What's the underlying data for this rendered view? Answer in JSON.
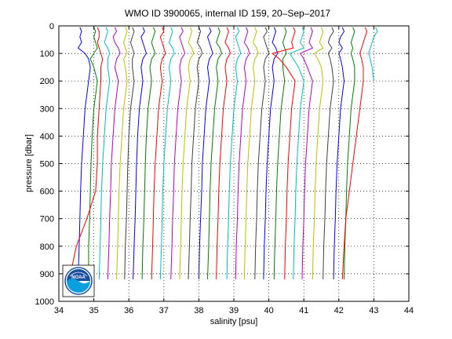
{
  "chart_data": {
    "type": "line",
    "title": "WMO ID 3900065, internal ID 159, 20–Sep–2017",
    "xlabel": "salinity [psu]",
    "ylabel": "pressure [dbar]",
    "xlim": [
      34,
      44
    ],
    "ylim": [
      0,
      1000
    ],
    "y_reversed": true,
    "grid": true,
    "xticks": [
      "34",
      "35",
      "36",
      "37",
      "38",
      "39",
      "40",
      "41",
      "42",
      "43",
      "44"
    ],
    "yticks": [
      "0",
      "100",
      "200",
      "300",
      "400",
      "500",
      "600",
      "700",
      "800",
      "900",
      "1000"
    ],
    "profile_pressures": [
      5,
      20,
      40,
      60,
      80,
      100,
      120,
      150,
      200,
      300,
      400,
      500,
      600,
      700,
      800,
      920
    ],
    "series": [
      {
        "color": "#0000ff",
        "values": [
          34.6,
          34.65,
          34.6,
          34.65,
          34.55,
          34.75,
          34.85,
          34.9,
          34.85,
          34.75,
          34.7,
          34.65,
          34.62,
          34.6,
          34.58,
          34.55
        ]
      },
      {
        "color": "#008000",
        "values": [
          35.0,
          35.05,
          35.0,
          35.05,
          35.1,
          35.0,
          34.9,
          35.0,
          35.1,
          35.0,
          34.95,
          34.92,
          34.9,
          34.88,
          34.85,
          34.85
        ]
      },
      {
        "color": "#ff0000",
        "values": [
          35.1,
          35.15,
          35.15,
          35.1,
          35.15,
          35.2,
          35.25,
          35.2,
          35.2,
          35.15,
          35.1,
          35.1,
          35.05,
          34.8,
          34.5,
          34.3
        ]
      },
      {
        "color": "#00bfbf",
        "values": [
          35.35,
          35.4,
          35.35,
          35.3,
          35.4,
          35.45,
          35.4,
          35.4,
          35.45,
          35.35,
          35.3,
          35.25,
          35.22,
          35.2,
          35.18,
          35.15
        ]
      },
      {
        "color": "#bf00bf",
        "values": [
          35.6,
          35.65,
          35.55,
          35.6,
          35.7,
          35.75,
          35.65,
          35.6,
          35.7,
          35.6,
          35.55,
          35.5,
          35.48,
          35.45,
          35.43,
          35.4
        ]
      },
      {
        "color": "#bfbf00",
        "values": [
          35.9,
          35.95,
          35.9,
          35.85,
          35.9,
          35.95,
          35.85,
          35.9,
          35.95,
          35.85,
          35.8,
          35.75,
          35.72,
          35.7,
          35.68,
          35.65
        ]
      },
      {
        "color": "#404040",
        "values": [
          36.1,
          36.15,
          36.1,
          36.05,
          36.1,
          36.15,
          36.1,
          36.1,
          36.15,
          36.05,
          36.0,
          35.97,
          35.95,
          35.93,
          35.9,
          35.88
        ]
      },
      {
        "color": "#0000ff",
        "values": [
          36.4,
          36.45,
          36.35,
          36.4,
          36.45,
          36.5,
          36.4,
          36.35,
          36.4,
          36.3,
          36.25,
          36.22,
          36.2,
          36.18,
          36.15,
          36.12
        ]
      },
      {
        "color": "#008000",
        "values": [
          36.7,
          36.75,
          36.7,
          36.65,
          36.7,
          36.75,
          36.65,
          36.6,
          36.65,
          36.55,
          36.5,
          36.47,
          36.45,
          36.43,
          36.4,
          36.38
        ]
      },
      {
        "color": "#ff0000",
        "values": [
          36.95,
          37.0,
          36.9,
          36.95,
          37.0,
          37.05,
          36.95,
          36.9,
          36.95,
          36.85,
          36.8,
          36.75,
          36.72,
          36.7,
          36.68,
          36.65
        ]
      },
      {
        "color": "#00bfbf",
        "values": [
          37.2,
          37.25,
          37.2,
          37.15,
          37.25,
          37.3,
          37.2,
          37.15,
          37.2,
          37.1,
          37.05,
          37.0,
          36.97,
          36.95,
          36.93,
          36.9
        ]
      },
      {
        "color": "#bf00bf",
        "values": [
          37.5,
          37.55,
          37.45,
          37.5,
          37.55,
          37.6,
          37.5,
          37.45,
          37.5,
          37.4,
          37.35,
          37.3,
          37.28,
          37.25,
          37.23,
          37.2
        ]
      },
      {
        "color": "#bfbf00",
        "values": [
          37.75,
          37.8,
          37.75,
          37.7,
          37.8,
          37.85,
          37.75,
          37.7,
          37.75,
          37.65,
          37.6,
          37.55,
          37.52,
          37.5,
          37.48,
          37.45
        ]
      },
      {
        "color": "#404040",
        "values": [
          38.0,
          38.05,
          38.0,
          37.95,
          38.05,
          38.1,
          38.0,
          37.95,
          38.0,
          37.9,
          37.85,
          37.8,
          37.78,
          37.75,
          37.73,
          37.7
        ]
      },
      {
        "color": "#0000ff",
        "values": [
          38.3,
          38.35,
          38.25,
          38.3,
          38.35,
          38.4,
          38.3,
          38.25,
          38.3,
          38.2,
          38.15,
          38.1,
          38.08,
          38.05,
          38.02,
          38.0
        ]
      },
      {
        "color": "#008000",
        "values": [
          38.55,
          38.6,
          38.55,
          38.5,
          38.6,
          38.65,
          38.55,
          38.5,
          38.55,
          38.45,
          38.4,
          38.35,
          38.32,
          38.3,
          38.28,
          38.25
        ]
      },
      {
        "color": "#ff0000",
        "values": [
          38.8,
          38.85,
          38.8,
          38.75,
          38.85,
          38.9,
          38.8,
          38.75,
          38.8,
          38.7,
          38.65,
          38.6,
          38.57,
          38.55,
          38.52,
          38.5
        ]
      },
      {
        "color": "#00bfbf",
        "values": [
          39.1,
          39.15,
          39.05,
          39.1,
          39.15,
          39.2,
          39.1,
          39.05,
          39.1,
          39.0,
          38.95,
          38.9,
          38.87,
          38.85,
          38.82,
          38.8
        ]
      },
      {
        "color": "#bf00bf",
        "values": [
          39.35,
          39.4,
          39.35,
          39.3,
          39.4,
          39.45,
          39.35,
          39.3,
          39.35,
          39.25,
          39.2,
          39.15,
          39.12,
          39.1,
          39.07,
          39.05
        ]
      },
      {
        "color": "#bfbf00",
        "values": [
          39.6,
          39.65,
          39.6,
          39.55,
          39.65,
          39.7,
          39.6,
          39.55,
          39.6,
          39.5,
          39.45,
          39.4,
          39.37,
          39.35,
          39.32,
          39.3
        ]
      },
      {
        "color": "#404040",
        "values": [
          39.9,
          39.95,
          39.85,
          39.9,
          39.95,
          40.0,
          39.9,
          39.85,
          39.9,
          39.8,
          39.75,
          39.7,
          39.67,
          39.65,
          39.62,
          39.6
        ]
      },
      {
        "color": "#0000ff",
        "values": [
          40.15,
          40.2,
          40.15,
          40.1,
          40.2,
          40.25,
          40.15,
          40.1,
          40.15,
          40.05,
          40.0,
          39.95,
          39.92,
          39.9,
          39.87,
          39.85
        ]
      },
      {
        "color": "#008000",
        "values": [
          40.45,
          40.5,
          40.45,
          40.4,
          40.45,
          40.5,
          40.4,
          40.4,
          40.45,
          40.35,
          40.3,
          40.25,
          40.22,
          40.2,
          40.17,
          40.15
        ]
      },
      {
        "color": "#ff0000",
        "values": [
          40.7,
          40.75,
          40.7,
          40.65,
          40.7,
          40.1,
          40.3,
          40.5,
          40.75,
          40.65,
          40.6,
          40.55,
          40.52,
          40.5,
          40.47,
          40.45
        ]
      },
      {
        "color": "#00bfbf",
        "values": [
          40.95,
          41.0,
          40.95,
          40.9,
          41.0,
          40.6,
          40.7,
          40.85,
          41.0,
          40.9,
          40.85,
          40.8,
          40.77,
          40.75,
          40.72,
          40.7
        ]
      },
      {
        "color": "#bf00bf",
        "values": [
          41.2,
          41.25,
          41.2,
          41.15,
          41.25,
          40.9,
          41.0,
          41.1,
          41.25,
          41.15,
          41.1,
          41.05,
          41.02,
          41.0,
          40.97,
          40.95
        ]
      },
      {
        "color": "#bfbf00",
        "values": [
          41.5,
          41.55,
          41.5,
          41.45,
          41.55,
          41.3,
          41.4,
          41.5,
          41.55,
          41.45,
          41.4,
          41.35,
          41.32,
          41.3,
          41.27,
          41.25
        ]
      },
      {
        "color": "#404040",
        "values": [
          41.8,
          41.85,
          41.75,
          41.7,
          41.8,
          41.7,
          41.75,
          41.8,
          41.85,
          41.75,
          41.7,
          41.65,
          41.62,
          41.6,
          41.57,
          41.55
        ]
      },
      {
        "color": "#0000ff",
        "values": [
          42.1,
          42.15,
          42.05,
          42.0,
          42.1,
          42.0,
          42.05,
          42.1,
          42.15,
          42.05,
          42.0,
          41.95,
          41.92,
          41.9,
          41.87,
          41.85
        ]
      },
      {
        "color": "#008000",
        "values": [
          42.4,
          42.45,
          42.4,
          42.35,
          42.4,
          42.35,
          42.4,
          42.45,
          42.45,
          42.35,
          42.3,
          42.25,
          42.22,
          42.2,
          42.17,
          42.15
        ]
      },
      {
        "color": "#ff0000",
        "values": [
          42.75,
          42.8,
          42.75,
          42.7,
          42.65,
          42.6,
          42.65,
          42.7,
          42.7,
          42.6,
          42.5,
          42.4,
          42.3,
          42.2,
          42.15,
          42.1
        ]
      },
      {
        "color": "#00bfbf",
        "values": [
          43.05,
          43.1,
          43.0,
          42.95,
          42.9,
          42.85,
          42.9,
          42.95,
          43.0
        ]
      }
    ]
  },
  "logo": {
    "text": "NOAA",
    "colors": {
      "sky": "#1a4fa0",
      "wave": "#0aa0e0",
      "ring": "#ffffff"
    }
  }
}
